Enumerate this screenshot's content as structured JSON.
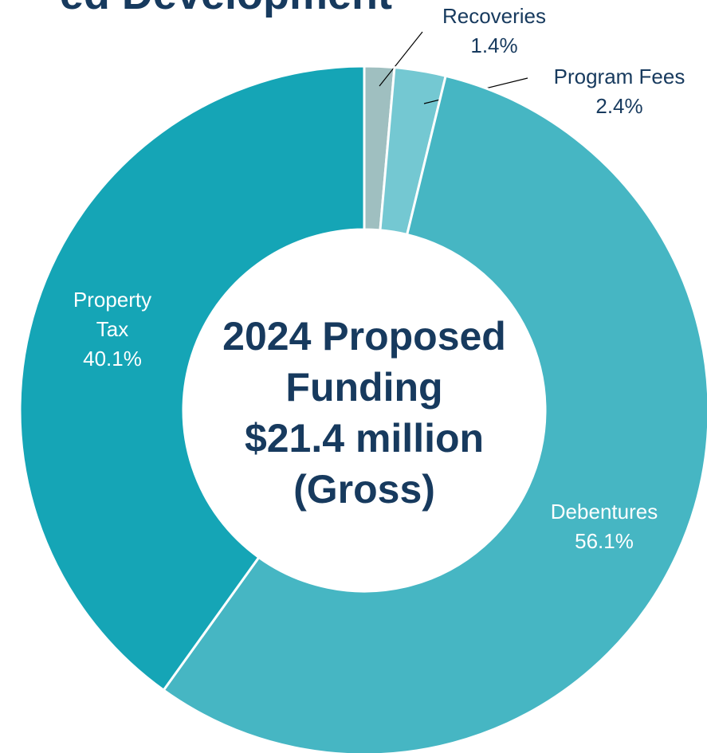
{
  "chart_data": {
    "type": "donut",
    "title": "ed Development",
    "center_text": [
      "2024 Proposed",
      "Funding",
      "$21.4 million",
      "(Gross)"
    ],
    "categories": [
      "Recoveries",
      "Program Fees",
      "Debentures",
      "Property Tax"
    ],
    "values": [
      1.4,
      2.4,
      56.1,
      40.1
    ],
    "value_labels": [
      "1.4%",
      "2.4%",
      "56.1%",
      "40.1%"
    ],
    "colors": [
      "#9fbfc0",
      "#74c8d2",
      "#46b6c3",
      "#15a5b6"
    ]
  }
}
